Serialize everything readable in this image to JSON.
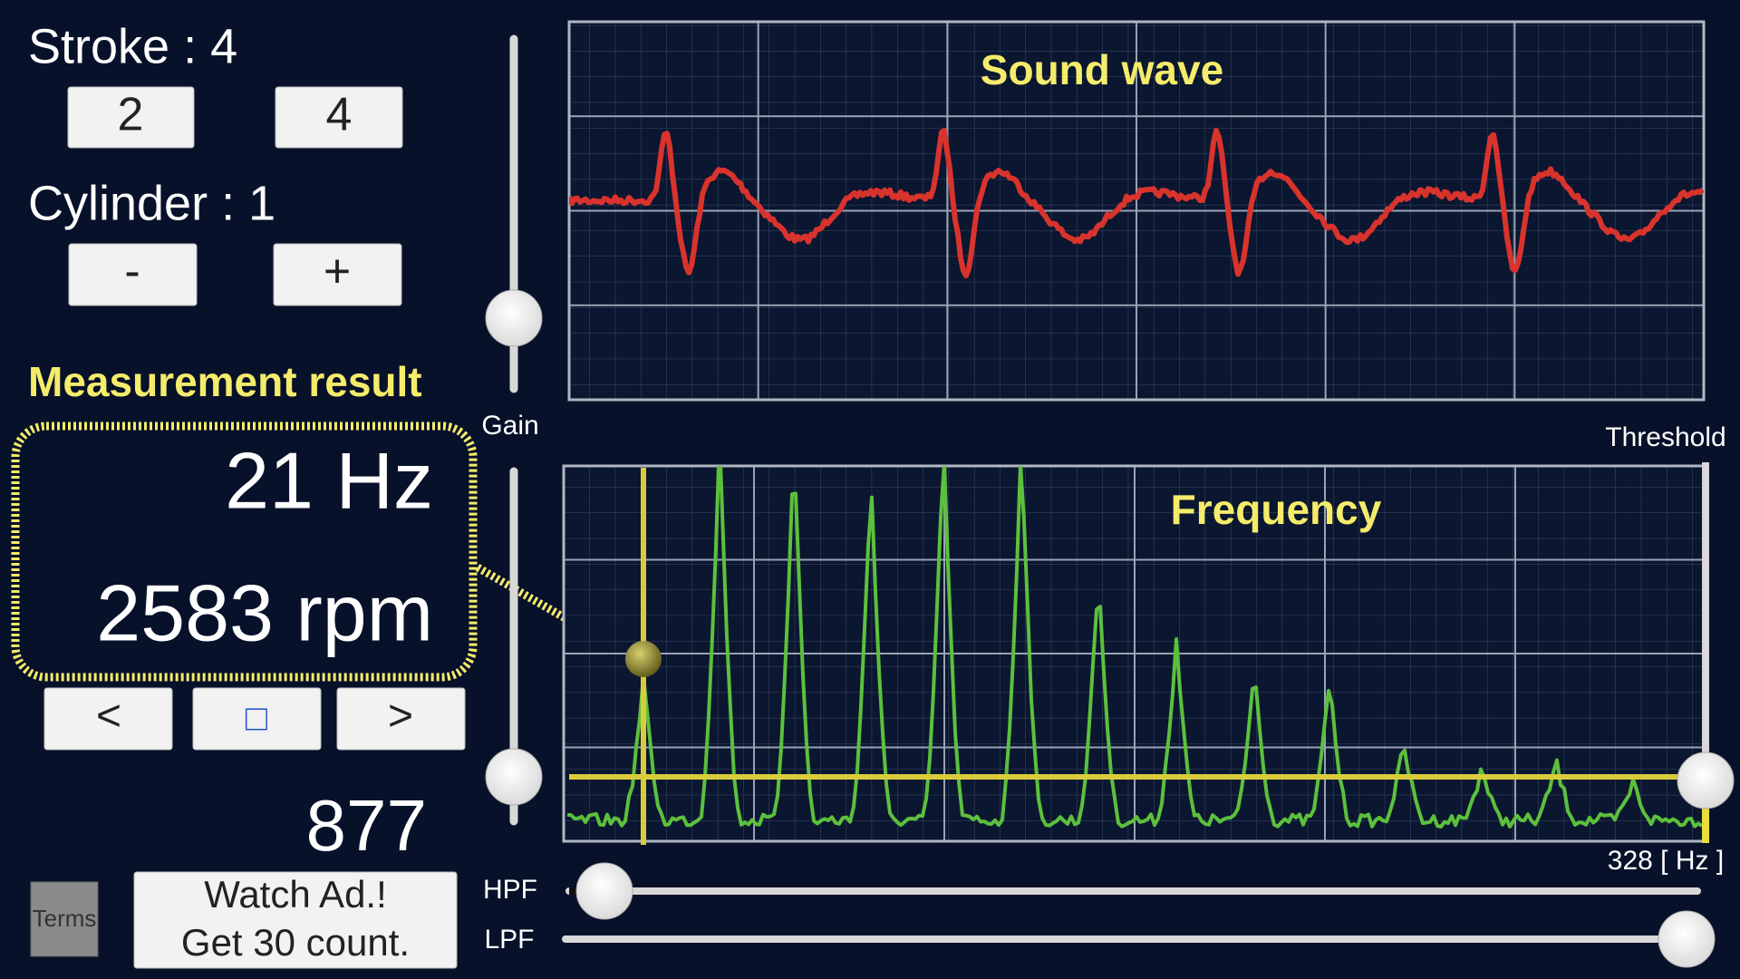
{
  "controls": {
    "stroke_label": "Stroke : 4",
    "stroke_buttons": [
      "2",
      "4"
    ],
    "cylinder_label": "Cylinder : 1",
    "cylinder_buttons": [
      "-",
      "+"
    ]
  },
  "result": {
    "heading": "Measurement result",
    "frequency": "21 Hz",
    "rpm": "2583 rpm",
    "nav_buttons": [
      "<",
      "□",
      ">"
    ],
    "count": "877"
  },
  "footer": {
    "terms": "Terms",
    "watch_ad": [
      "Watch Ad.!",
      "Get 30 count."
    ]
  },
  "sliders": {
    "gain": "Gain",
    "threshold": "Threshold",
    "hpf": "HPF",
    "lpf": "LPF"
  },
  "panels": {
    "sound_wave": "Sound wave",
    "frequency": "Frequency",
    "max_frequency": "328 [ Hz ]"
  }
}
